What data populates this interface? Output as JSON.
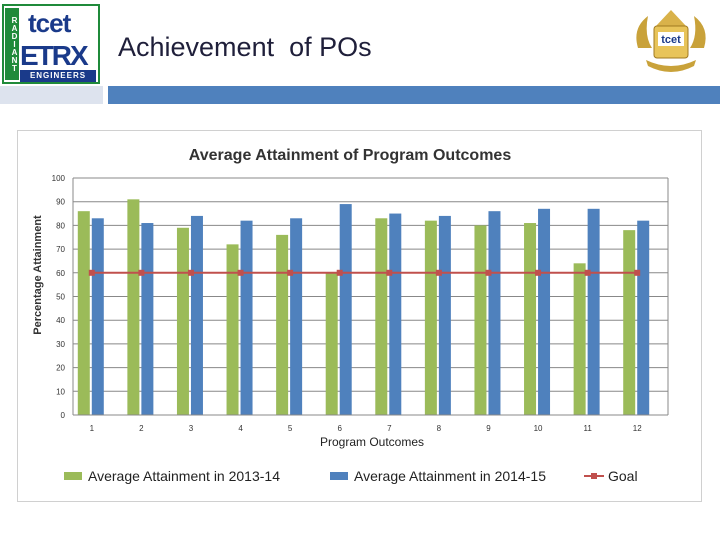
{
  "header": {
    "slide_title": "Achievement  of POs",
    "logo_left": {
      "vertical_text": "RADIANT",
      "brand": "tcet",
      "dept": "ETRX",
      "subtitle": "ENGINEERS"
    },
    "logo_right": {
      "brand": "tcet"
    }
  },
  "colors": {
    "series_2013": "#9bbb59",
    "series_2014": "#4f81bd",
    "goal": "#c0504d",
    "accent_bar": "#4f81bd"
  },
  "chart_data": {
    "type": "bar",
    "title": "Average Attainment of Program Outcomes",
    "xlabel": "Program Outcomes",
    "ylabel": "Percentage Attainment",
    "ylim": [
      0,
      100
    ],
    "yticks": [
      0,
      10,
      20,
      30,
      40,
      50,
      60,
      70,
      80,
      90,
      100
    ],
    "categories": [
      "1",
      "2",
      "3",
      "4",
      "5",
      "6",
      "7",
      "8",
      "9",
      "10",
      "11",
      "12"
    ],
    "series": [
      {
        "name": "Average Attainment in 2013-14",
        "kind": "bar",
        "values": [
          86,
          91,
          79,
          72,
          76,
          60,
          83,
          82,
          80,
          81,
          64,
          78
        ]
      },
      {
        "name": "Average Attainment in 2014-15",
        "kind": "bar",
        "values": [
          83,
          81,
          84,
          82,
          83,
          89,
          85,
          84,
          86,
          87,
          87,
          82
        ]
      },
      {
        "name": "Goal",
        "kind": "line",
        "values": [
          60,
          60,
          60,
          60,
          60,
          60,
          60,
          60,
          60,
          60,
          60,
          60
        ]
      }
    ],
    "grid": true,
    "legend": "bottom"
  }
}
